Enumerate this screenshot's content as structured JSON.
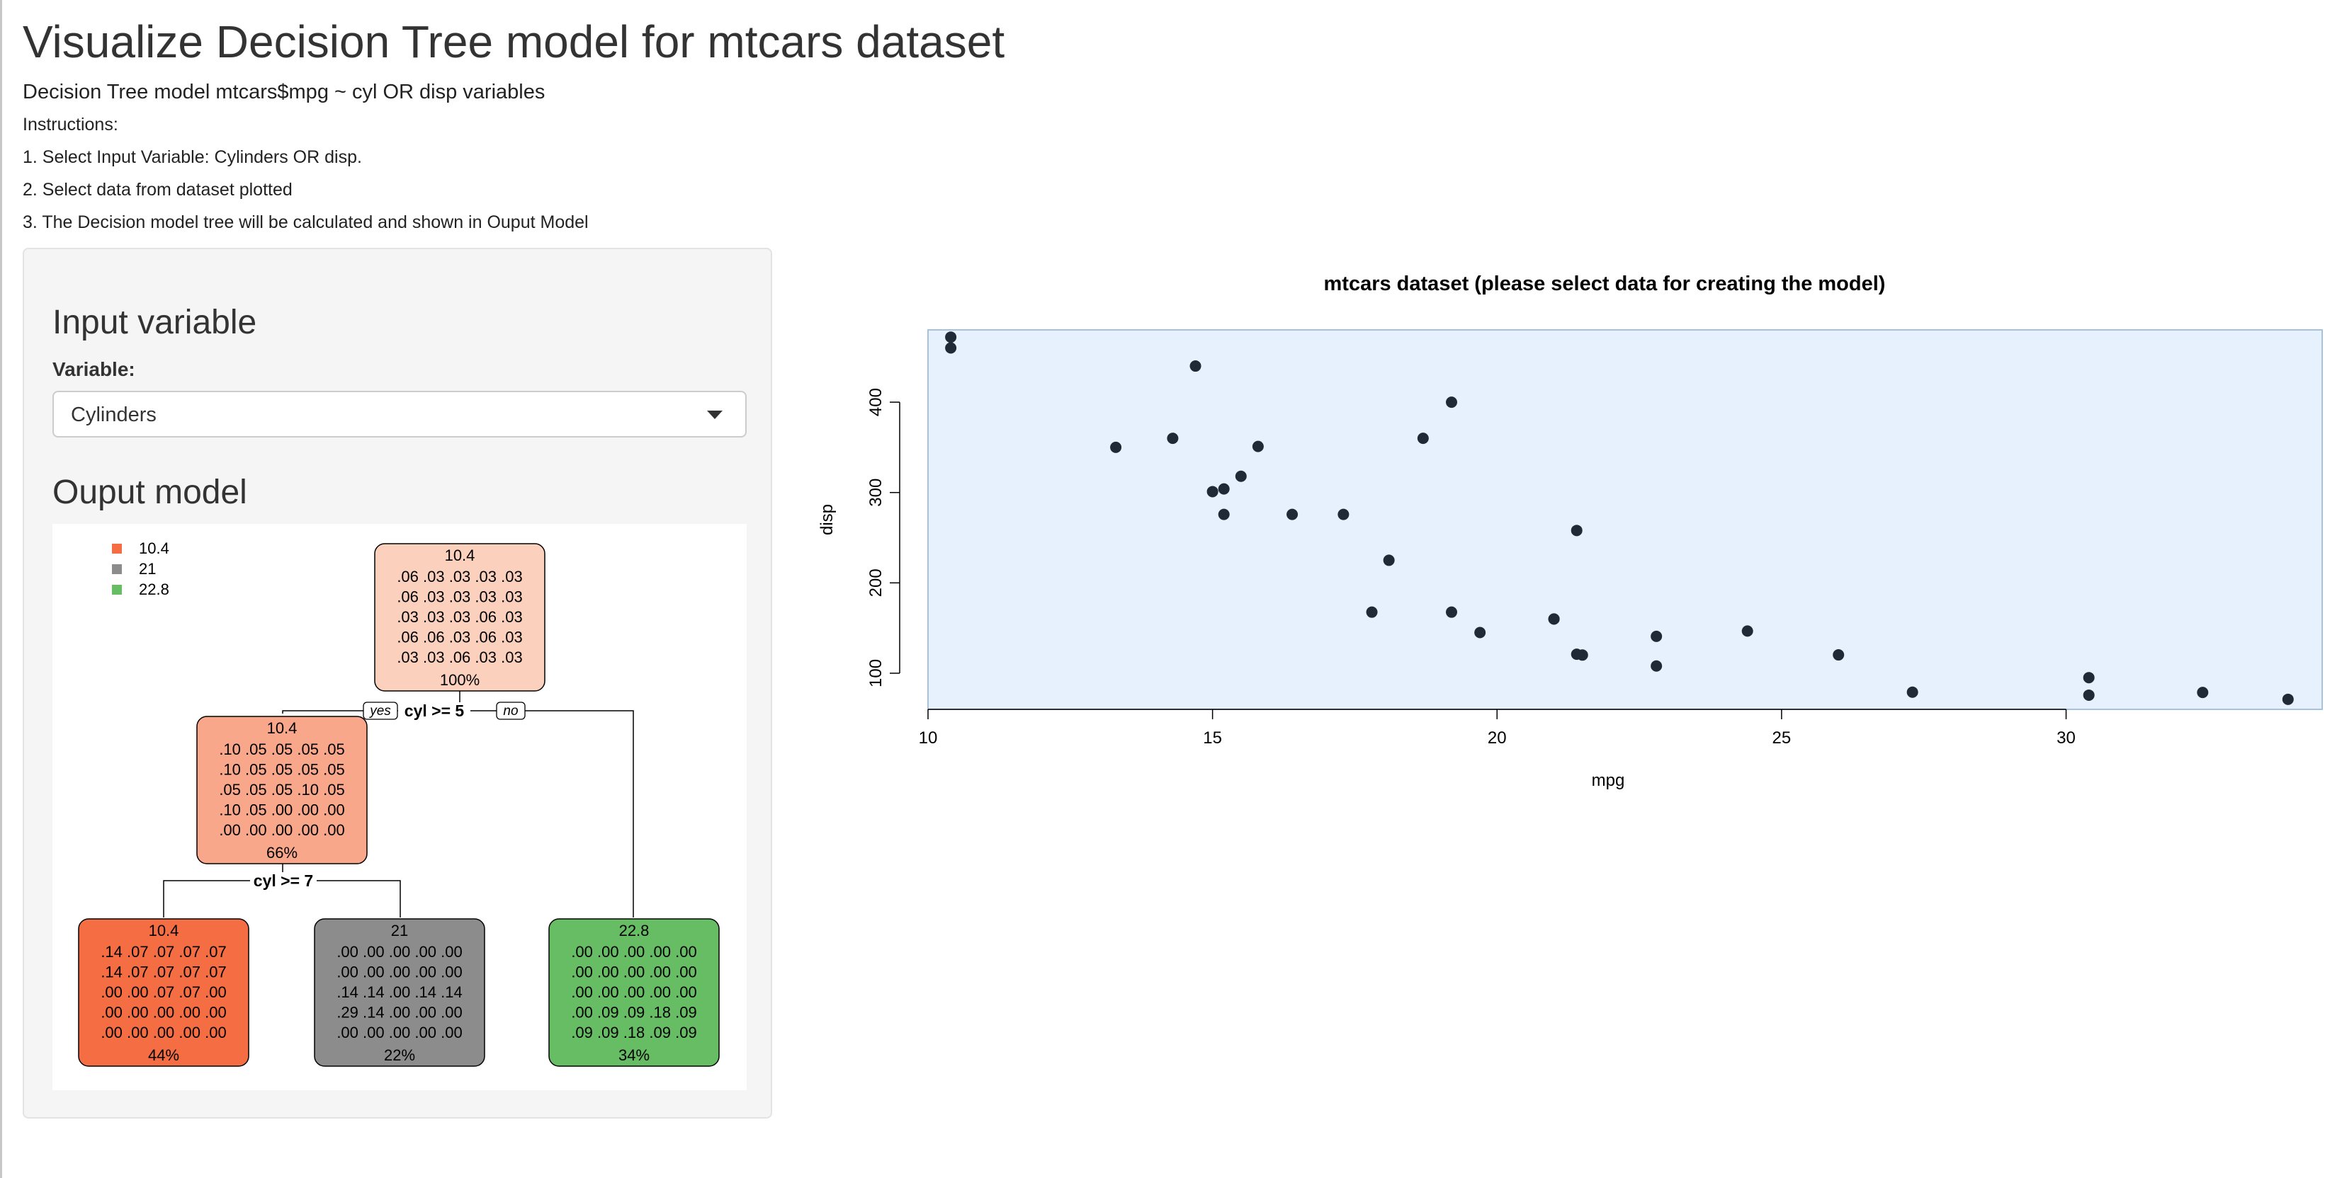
{
  "page": {
    "title": "Visualize Decision Tree model for mtcars dataset",
    "subtitle": "Decision Tree model mtcars$mpg ~ cyl OR disp variables",
    "instructions_heading": "Instructions:",
    "instructions": [
      "1. Select Input Variable: Cylinders OR disp.",
      "2. Select data from dataset plotted",
      "3. The Decision model tree will be calculated and shown in Ouput Model"
    ]
  },
  "sidebar": {
    "input_heading": "Input variable",
    "variable_label": "Variable:",
    "variable_value": "Cylinders",
    "output_heading": "Ouput model"
  },
  "tree": {
    "legend": [
      {
        "label": "10.4",
        "color": "#f46d43"
      },
      {
        "label": "21",
        "color": "#8c8c8c"
      },
      {
        "label": "22.8",
        "color": "#66bd63"
      }
    ],
    "nodes": [
      {
        "id": "root",
        "label": "10.4",
        "fill": "#fbd0bd",
        "rows": [
          ".06 .03 .03 .03 .03",
          ".06 .03 .03 .03 .03",
          ".03 .03 .03 .06 .03",
          ".06 .06 .03 .06 .03",
          ".03 .03 .06 .03 .03"
        ],
        "pct": "100%"
      },
      {
        "id": "left",
        "label": "10.4",
        "fill": "#f8a78a",
        "rows": [
          ".10 .05 .05 .05 .05",
          ".10 .05 .05 .05 .05",
          ".05 .05 .05 .10 .05",
          ".10 .05 .00 .00 .00",
          ".00 .00 .00 .00 .00"
        ],
        "pct": "66%"
      },
      {
        "id": "leaf1",
        "label": "10.4",
        "fill": "#f46d43",
        "rows": [
          ".14 .07 .07 .07 .07",
          ".14 .07 .07 .07 .07",
          ".00 .00 .07 .07 .00",
          ".00 .00 .00 .00 .00",
          ".00 .00 .00 .00 .00"
        ],
        "pct": "44%"
      },
      {
        "id": "leaf2",
        "label": "21",
        "fill": "#8c8c8c",
        "rows": [
          ".00 .00 .00 .00 .00",
          ".00 .00 .00 .00 .00",
          ".14 .14 .00 .14 .14",
          ".29 .14 .00 .00 .00",
          ".00 .00 .00 .00 .00"
        ],
        "pct": "22%"
      },
      {
        "id": "leaf3",
        "label": "22.8",
        "fill": "#66bd63",
        "rows": [
          ".00 .00 .00 .00 .00",
          ".00 .00 .00 .00 .00",
          ".00 .00 .00 .00 .00",
          ".00 .09 .09 .18 .09",
          ".09 .09 .18 .09 .09"
        ],
        "pct": "34%"
      }
    ],
    "splits": {
      "root": "cyl >= 5",
      "left": "cyl >= 7",
      "yes": "yes",
      "no": "no"
    }
  },
  "chart_data": {
    "type": "scatter",
    "title": "mtcars dataset (please select data for creating the model)",
    "xlabel": "mpg",
    "ylabel": "disp",
    "xlim": [
      10,
      34.5
    ],
    "ylim": [
      60,
      480
    ],
    "xticks": [
      10,
      15,
      20,
      25,
      30
    ],
    "yticks": [
      100,
      200,
      300,
      400
    ],
    "x": [
      21,
      21,
      22.8,
      21.4,
      18.7,
      18.1,
      14.3,
      24.4,
      22.8,
      19.2,
      17.8,
      16.4,
      17.3,
      15.2,
      10.4,
      10.4,
      14.7,
      32.4,
      30.4,
      33.9,
      21.5,
      15.5,
      15.2,
      13.3,
      19.2,
      27.3,
      26,
      30.4,
      15.8,
      19.7,
      15,
      21.4
    ],
    "y": [
      160,
      160,
      108,
      258,
      360,
      225,
      360,
      146.7,
      140.8,
      167.6,
      167.6,
      275.8,
      275.8,
      275.8,
      472,
      460,
      440,
      78.7,
      75.7,
      71.1,
      120.1,
      318,
      304,
      350,
      400,
      79,
      120.3,
      95.1,
      351,
      145,
      301,
      121
    ],
    "point_color": "#1f2a36",
    "plot_bg": "#e6f1fd",
    "grid": false
  }
}
